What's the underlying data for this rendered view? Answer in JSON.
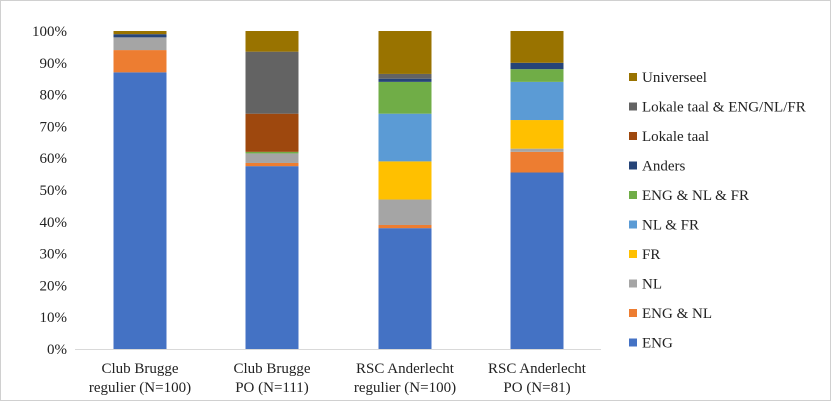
{
  "chart_data": {
    "type": "bar",
    "stacked": true,
    "title": "",
    "xlabel": "",
    "ylabel": "",
    "ylim": [
      0,
      100
    ],
    "y_ticks": [
      0,
      10,
      20,
      30,
      40,
      50,
      60,
      70,
      80,
      90,
      100
    ],
    "y_tick_suffix": "%",
    "grid": false,
    "legend_position": "right",
    "categories": [
      [
        "Club Brugge",
        "regulier (N=100)"
      ],
      [
        "Club Brugge",
        "PO (N=111)"
      ],
      [
        "RSC Anderlecht",
        "regulier (N=100)"
      ],
      [
        "RSC Anderlecht",
        "PO (N=81)"
      ]
    ],
    "series": [
      {
        "name": "ENG",
        "color": "#4472C4",
        "values": [
          87,
          57.5,
          38,
          55.5
        ]
      },
      {
        "name": "ENG & NL",
        "color": "#ED7D31",
        "values": [
          7,
          1,
          1,
          6.5
        ]
      },
      {
        "name": "NL",
        "color": "#A5A5A5",
        "values": [
          4,
          3,
          8,
          1
        ]
      },
      {
        "name": "FR",
        "color": "#FFC000",
        "values": [
          0,
          0,
          12,
          9
        ]
      },
      {
        "name": "NL & FR",
        "color": "#5B9BD5",
        "values": [
          0,
          0,
          15,
          12
        ]
      },
      {
        "name": "ENG & NL & FR",
        "color": "#70AD47",
        "values": [
          0,
          0.5,
          10,
          4
        ]
      },
      {
        "name": "Anders",
        "color": "#264478",
        "values": [
          1,
          0,
          1,
          2
        ]
      },
      {
        "name": "Lokale taal",
        "color": "#9E480E",
        "values": [
          0,
          12,
          0,
          0
        ]
      },
      {
        "name": "Lokale taal & ENG/NL/FR",
        "color": "#636363",
        "values": [
          0,
          19.5,
          1.5,
          0
        ]
      },
      {
        "name": "Universeel",
        "color": "#997300",
        "values": [
          1,
          6.5,
          13.5,
          10
        ]
      }
    ]
  }
}
